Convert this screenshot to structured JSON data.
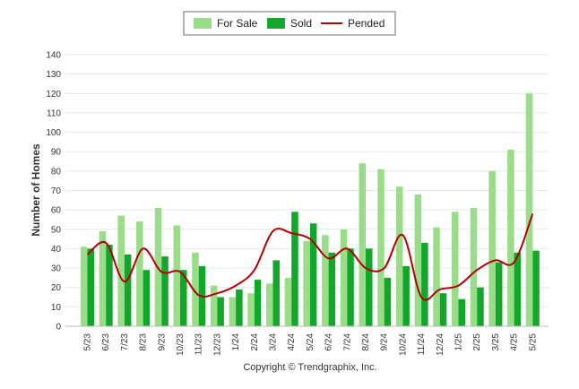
{
  "chart_data": {
    "type": "bar",
    "title": "",
    "xlabel": "",
    "ylabel": "Number of Homes",
    "ylim": [
      0,
      140
    ],
    "yticks": [
      0,
      10,
      20,
      30,
      40,
      50,
      60,
      70,
      80,
      90,
      100,
      110,
      120,
      130,
      140
    ],
    "grid": true,
    "legend_position": "top-center",
    "categories": [
      "5/23",
      "6/23",
      "7/23",
      "8/23",
      "9/23",
      "10/23",
      "11/23",
      "12/23",
      "1/24",
      "2/24",
      "3/24",
      "4/24",
      "5/24",
      "6/24",
      "7/24",
      "8/24",
      "9/24",
      "10/24",
      "11/24",
      "12/24",
      "1/25",
      "2/25",
      "3/25",
      "4/25",
      "5/25"
    ],
    "series": [
      {
        "name": "For Sale",
        "type": "bar",
        "color": "#99dd88",
        "values": [
          41,
          49,
          57,
          54,
          61,
          52,
          38,
          21,
          15,
          17,
          22,
          25,
          44,
          47,
          50,
          84,
          81,
          72,
          68,
          51,
          59,
          61,
          80,
          91,
          120
        ]
      },
      {
        "name": "Sold",
        "type": "bar",
        "color": "#12a62b",
        "values": [
          40,
          42,
          37,
          29,
          36,
          29,
          31,
          15,
          19,
          24,
          34,
          59,
          53,
          38,
          40,
          40,
          25,
          31,
          43,
          17,
          14,
          20,
          33,
          38,
          39
        ]
      },
      {
        "name": "Pended",
        "type": "line",
        "color": "#b30000",
        "values": [
          37,
          43,
          23,
          40,
          28,
          28,
          16,
          17,
          21,
          29,
          49,
          48,
          45,
          35,
          40,
          30,
          30,
          47,
          15,
          19,
          21,
          29,
          34,
          33,
          58
        ]
      }
    ]
  },
  "footer": {
    "copyright": "Copyright © Trendgraphix, Inc."
  }
}
